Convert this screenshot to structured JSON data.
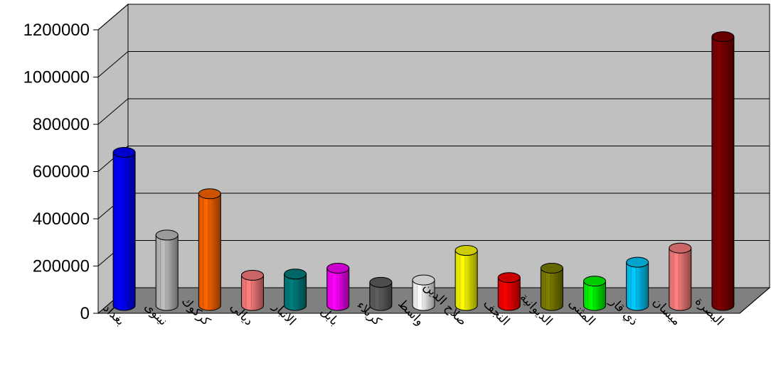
{
  "chart_data": {
    "type": "bar",
    "title": "",
    "xlabel": "",
    "ylabel": "",
    "ylim": [
      0,
      1200000
    ],
    "yticks": [
      "0",
      "200000",
      "400000",
      "600000",
      "800000",
      "1000000",
      "1200000"
    ],
    "grid": true,
    "legend": "none",
    "categories": [
      "بغداد",
      "نينوى",
      "كركوك",
      "ديالى",
      "الانبار",
      "بابل",
      "كربلاء",
      "واسط",
      "صلاح الدين",
      "النجف",
      "الديوانية",
      "المثنى",
      "ذي قار",
      "ميسان",
      "البصرة"
    ],
    "values": [
      660000,
      310000,
      485000,
      140000,
      145000,
      170000,
      110000,
      120000,
      245000,
      130000,
      170000,
      115000,
      195000,
      255000,
      1150000
    ],
    "colors": [
      "#0000ff",
      "#c0c0c0",
      "#ff6600",
      "#ff8080",
      "#008080",
      "#ff00ff",
      "#606060",
      "#ffffff",
      "#ffff00",
      "#ff0000",
      "#808000",
      "#00ff00",
      "#00ccff",
      "#ff8080",
      "#800000"
    ]
  }
}
